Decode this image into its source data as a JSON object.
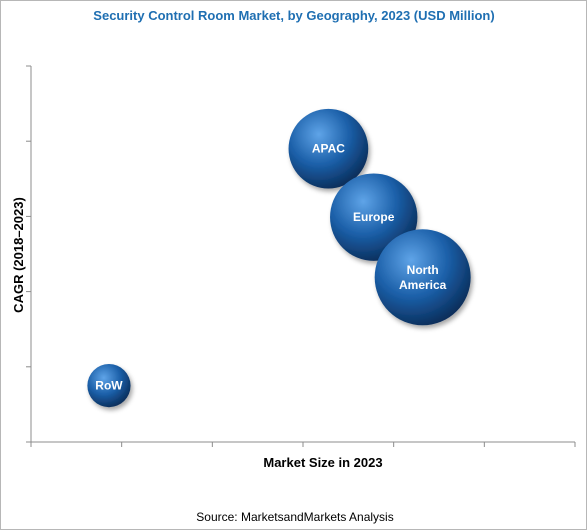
{
  "colors": {
    "title": "#1f6fb2",
    "bubble_light": "#5fa4e8",
    "bubble_mid": "#1b5fa8",
    "bubble_dark": "#0b2f5c",
    "axis": "#8c8c8c"
  },
  "chart_data": {
    "type": "scatter",
    "subtype": "bubble",
    "title": "Security Control Room Market, by Geography, 2023 (USD Million)",
    "xlabel": "Market Size in 2023",
    "ylabel": "CAGR (2018–2023)",
    "xlim": [
      0,
      6
    ],
    "ylim": [
      0,
      5
    ],
    "grid": false,
    "legend": "none",
    "axis_tick_labels": "none",
    "series": [
      {
        "label": "APAC",
        "x": 3.28,
        "y": 3.9,
        "size": 0.83
      },
      {
        "label": "Europe",
        "x": 3.78,
        "y": 2.99,
        "size": 0.91
      },
      {
        "label": "North\nAmerica",
        "x": 4.32,
        "y": 2.19,
        "size": 1.0
      },
      {
        "label": "RoW",
        "x": 0.86,
        "y": 0.75,
        "size": 0.45
      }
    ]
  },
  "source": "Source: MarketsandMarkets Analysis"
}
